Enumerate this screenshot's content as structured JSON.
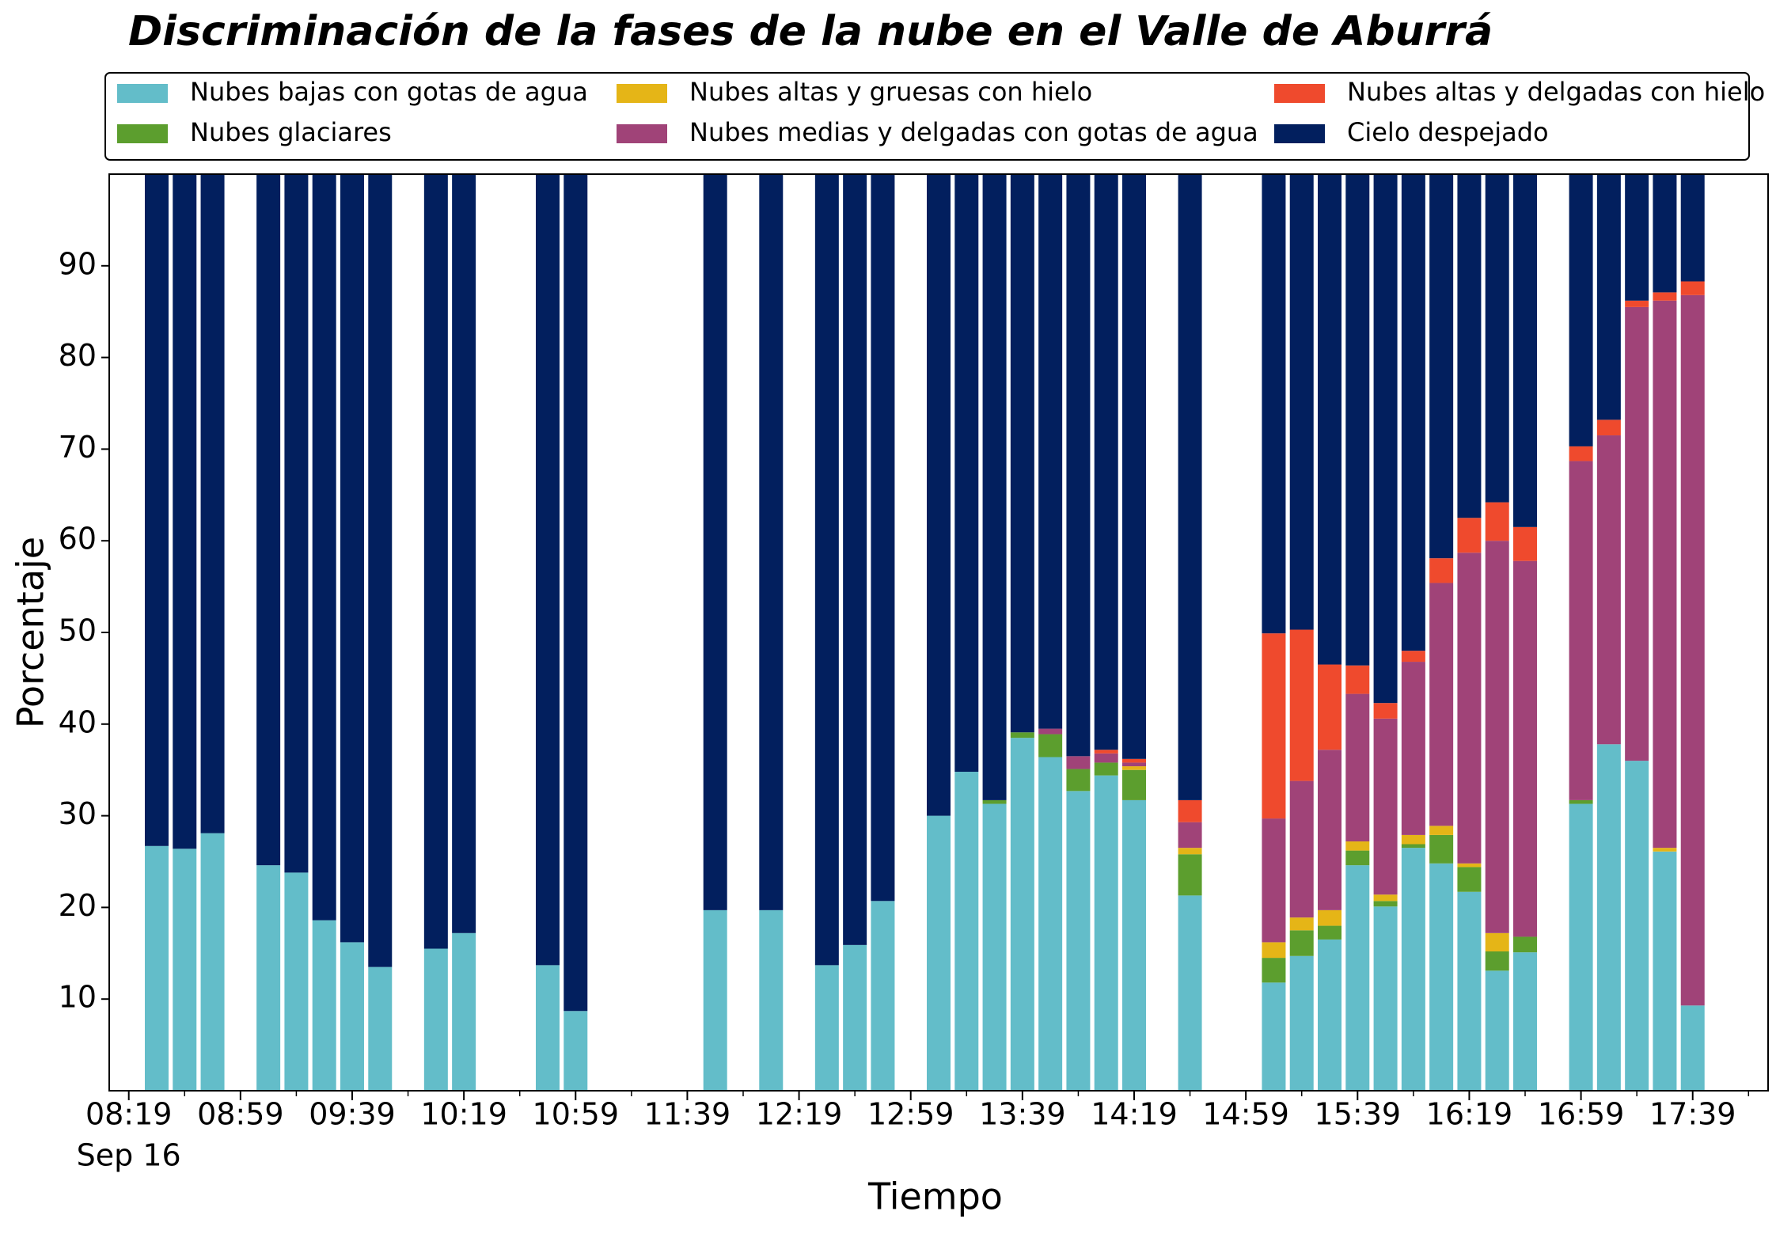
{
  "chart_data": {
    "type": "stacked_bar",
    "title": "Discriminación de la fases de la nube en el Valle de Aburrá",
    "xlabel": "Tiempo",
    "ylabel": "Porcentaje",
    "x": [
      "08:29",
      "08:39",
      "08:49",
      "09:09",
      "09:19",
      "09:29",
      "09:39",
      "09:49",
      "10:09",
      "10:19",
      "10:49",
      "10:59",
      "11:49",
      "12:09",
      "12:29",
      "12:39",
      "12:49",
      "13:09",
      "13:19",
      "13:29",
      "13:39",
      "13:49",
      "13:59",
      "14:09",
      "14:19",
      "14:39",
      "15:09",
      "15:19",
      "15:29",
      "15:39",
      "15:49",
      "15:59",
      "16:09",
      "16:19",
      "16:29",
      "16:39",
      "16:59",
      "17:09",
      "17:19",
      "17:29",
      "17:39"
    ],
    "series": [
      {
        "name": "Nubes bajas con gotas de agua",
        "color": "#63bdc9",
        "values": [
          26.7,
          26.4,
          28.1,
          24.6,
          23.8,
          18.6,
          16.2,
          13.5,
          15.5,
          17.2,
          13.7,
          8.7,
          19.7,
          19.7,
          13.7,
          15.9,
          20.7,
          30.0,
          34.8,
          31.3,
          38.5,
          36.4,
          32.7,
          34.4,
          31.7,
          21.3,
          11.8,
          14.7,
          16.5,
          24.6,
          20.1,
          26.5,
          24.8,
          21.7,
          13.1,
          15.1,
          31.3,
          37.8,
          36.0,
          26.1,
          9.3
        ]
      },
      {
        "name": "Nubes glaciares",
        "color": "#5c9e2e",
        "values": [
          0,
          0,
          0,
          0,
          0,
          0,
          0,
          0,
          0,
          0,
          0,
          0,
          0,
          0,
          0,
          0,
          0,
          0,
          0,
          0.4,
          0.6,
          2.5,
          2.4,
          1.4,
          3.3,
          4.5,
          2.7,
          2.8,
          1.5,
          1.6,
          0.6,
          0.4,
          3.1,
          2.7,
          2.1,
          1.7,
          0.4,
          0,
          0,
          0,
          0
        ]
      },
      {
        "name": "Nubes altas y gruesas con hielo",
        "color": "#e5b517",
        "values": [
          0,
          0,
          0,
          0,
          0,
          0,
          0,
          0,
          0,
          0,
          0,
          0,
          0,
          0,
          0,
          0,
          0,
          0,
          0,
          0,
          0,
          0,
          0,
          0,
          0.4,
          0.7,
          1.7,
          1.4,
          1.7,
          1.0,
          0.7,
          1.0,
          1.0,
          0.4,
          2.0,
          0,
          0,
          0,
          0,
          0.4,
          0
        ]
      },
      {
        "name": "Nubes medias y delgadas con gotas de agua",
        "color": "#a04378",
        "values": [
          0,
          0,
          0,
          0,
          0,
          0,
          0,
          0,
          0,
          0,
          0,
          0,
          0,
          0,
          0,
          0,
          0,
          0,
          0,
          0,
          0,
          0.6,
          1.4,
          1.0,
          0.4,
          2.8,
          13.5,
          14.9,
          17.5,
          16.1,
          19.2,
          18.9,
          26.5,
          33.9,
          42.8,
          41.0,
          37.0,
          33.7,
          49.5,
          59.7,
          77.5
        ]
      },
      {
        "name": "Nubes altas y delgadas con hielo",
        "color": "#ef4a2d",
        "values": [
          0,
          0,
          0,
          0,
          0,
          0,
          0,
          0,
          0,
          0,
          0,
          0,
          0,
          0,
          0,
          0,
          0,
          0,
          0,
          0,
          0,
          0,
          0,
          0.4,
          0.4,
          2.4,
          20.2,
          16.5,
          9.3,
          3.1,
          1.7,
          1.2,
          2.7,
          3.8,
          4.2,
          3.7,
          1.6,
          1.7,
          0.7,
          0.9,
          1.5
        ]
      },
      {
        "name": "Cielo despejado",
        "color": "#021f5e",
        "values": [
          73.3,
          73.6,
          71.9,
          75.4,
          76.2,
          81.4,
          83.8,
          86.5,
          84.5,
          82.8,
          86.3,
          91.3,
          80.3,
          80.3,
          86.3,
          84.1,
          79.3,
          70.0,
          65.2,
          68.3,
          60.9,
          60.5,
          63.5,
          62.8,
          63.8,
          68.3,
          50.1,
          49.7,
          53.5,
          53.6,
          57.7,
          52.0,
          41.9,
          37.5,
          35.8,
          38.5,
          29.7,
          26.8,
          13.8,
          12.9,
          11.7
        ]
      }
    ],
    "xlim": [
      "08:12",
      "18:06"
    ],
    "xticks": [
      "08:19",
      "08:59",
      "09:39",
      "10:19",
      "10:59",
      "11:39",
      "12:19",
      "12:59",
      "13:39",
      "14:19",
      "14:59",
      "15:39",
      "16:19",
      "16:59",
      "17:39"
    ],
    "xminorticks": [
      "08:39",
      "09:19",
      "09:59",
      "10:39",
      "11:19",
      "11:59",
      "12:39",
      "13:19",
      "13:59",
      "14:39",
      "15:19",
      "15:59",
      "16:39",
      "17:19",
      "17:59"
    ],
    "date_label": "Sep 16",
    "ylim": [
      0,
      100
    ],
    "yticks": [
      10,
      20,
      30,
      40,
      50,
      60,
      70,
      80,
      90
    ],
    "legend": "top",
    "legend_columns": 3
  }
}
